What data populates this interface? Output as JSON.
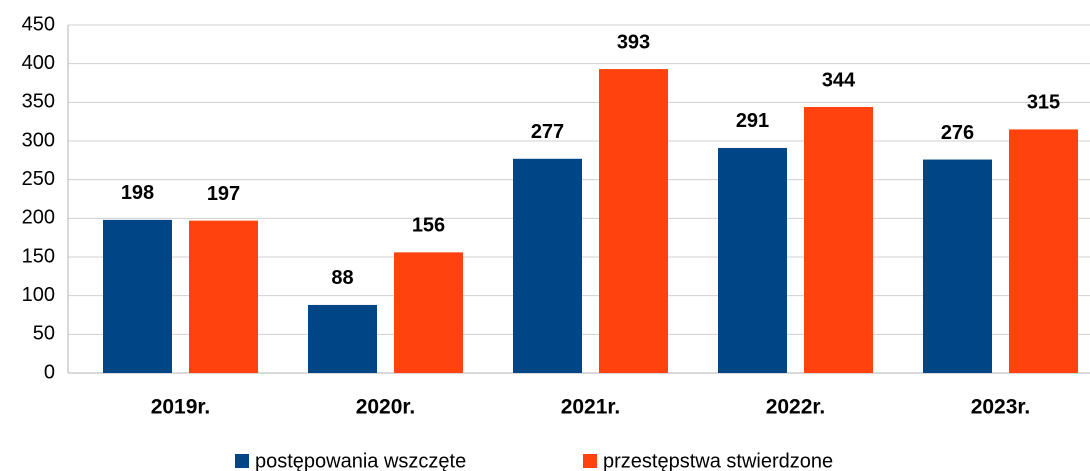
{
  "chart_data": {
    "type": "bar",
    "categories": [
      "2019r.",
      "2020r.",
      "2021r.",
      "2022r.",
      "2023r."
    ],
    "series": [
      {
        "name": "postępowania wszczęte",
        "color": "#004586",
        "values": [
          198,
          88,
          277,
          291,
          276
        ]
      },
      {
        "name": "przestępstwa stwierdzone",
        "color": "#ff420e",
        "values": [
          197,
          156,
          393,
          344,
          315
        ]
      }
    ],
    "ylim": [
      0,
      450
    ],
    "yticks": [
      0,
      50,
      100,
      150,
      200,
      250,
      300,
      350,
      400,
      450
    ],
    "grid": true,
    "legend": "bottom"
  }
}
